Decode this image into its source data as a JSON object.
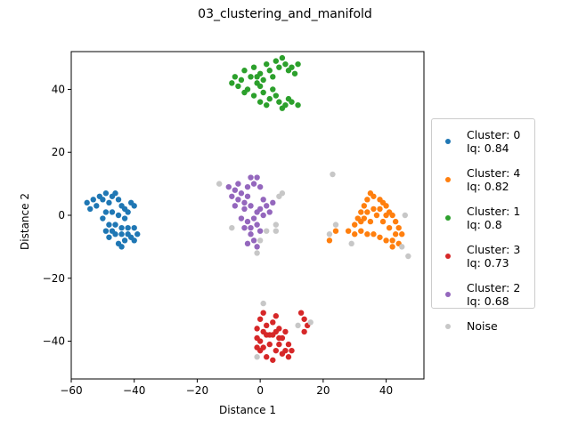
{
  "chart_data": {
    "type": "scatter",
    "title": "03_clustering_and_manifold",
    "xlabel": "Distance 1",
    "ylabel": "Distance 2",
    "xlim": [
      -60,
      52
    ],
    "ylim": [
      -52,
      52
    ],
    "xticks": [
      -60,
      -40,
      -20,
      0,
      20,
      40
    ],
    "yticks": [
      -40,
      -20,
      0,
      20,
      40
    ],
    "grid": false,
    "legend_position": "outside right",
    "series": [
      {
        "name": "Cluster: 0\nIq: 0.84",
        "color": "#1f77b4",
        "points": [
          [
            -55,
            4
          ],
          [
            -54,
            2
          ],
          [
            -53,
            5
          ],
          [
            -52,
            3
          ],
          [
            -51,
            6
          ],
          [
            -50,
            5
          ],
          [
            -49,
            7
          ],
          [
            -48,
            4
          ],
          [
            -47,
            6
          ],
          [
            -46,
            7
          ],
          [
            -45,
            5
          ],
          [
            -44,
            3
          ],
          [
            -43,
            2
          ],
          [
            -42,
            1
          ],
          [
            -41,
            4
          ],
          [
            -40,
            3
          ],
          [
            -49,
            1
          ],
          [
            -47,
            1
          ],
          [
            -45,
            0
          ],
          [
            -43,
            -1
          ],
          [
            -50,
            -1
          ],
          [
            -48,
            -3
          ],
          [
            -46,
            -3
          ],
          [
            -44,
            -4
          ],
          [
            -42,
            -4
          ],
          [
            -40,
            -4
          ],
          [
            -39,
            -6
          ],
          [
            -41,
            -7
          ],
          [
            -43,
            -8
          ],
          [
            -45,
            -9
          ],
          [
            -44,
            -10
          ],
          [
            -46,
            -6
          ],
          [
            -48,
            -7
          ],
          [
            -47,
            -5
          ],
          [
            -49,
            -5
          ],
          [
            -42,
            -6
          ],
          [
            -40,
            -8
          ],
          [
            -44,
            -6
          ]
        ]
      },
      {
        "name": "Cluster: 4\nIq: 0.82",
        "color": "#ff7f0e",
        "points": [
          [
            22,
            -8
          ],
          [
            24,
            -5
          ],
          [
            28,
            -5
          ],
          [
            30,
            -3
          ],
          [
            31,
            -1
          ],
          [
            32,
            1
          ],
          [
            33,
            3
          ],
          [
            34,
            5
          ],
          [
            35,
            7
          ],
          [
            36,
            6
          ],
          [
            38,
            5
          ],
          [
            39,
            4
          ],
          [
            40,
            3
          ],
          [
            41,
            1
          ],
          [
            42,
            0
          ],
          [
            43,
            -2
          ],
          [
            44,
            -4
          ],
          [
            45,
            -6
          ],
          [
            44,
            -9
          ],
          [
            42,
            -10
          ],
          [
            40,
            -8
          ],
          [
            38,
            -7
          ],
          [
            36,
            -6
          ],
          [
            34,
            -6
          ],
          [
            32,
            -5
          ],
          [
            33,
            -1
          ],
          [
            35,
            -2
          ],
          [
            37,
            0
          ],
          [
            39,
            -2
          ],
          [
            41,
            -4
          ],
          [
            43,
            -6
          ],
          [
            36,
            2
          ],
          [
            38,
            2
          ],
          [
            40,
            0
          ],
          [
            34,
            1
          ],
          [
            32,
            -2
          ],
          [
            30,
            -6
          ],
          [
            42,
            -8
          ]
        ]
      },
      {
        "name": "Cluster: 1\nIq: 0.8",
        "color": "#2ca02c",
        "points": [
          [
            -9,
            42
          ],
          [
            -8,
            44
          ],
          [
            -7,
            41
          ],
          [
            -6,
            43
          ],
          [
            -5,
            46
          ],
          [
            -4,
            40
          ],
          [
            -3,
            44
          ],
          [
            -2,
            47
          ],
          [
            -1,
            42
          ],
          [
            0,
            45
          ],
          [
            1,
            43
          ],
          [
            2,
            48
          ],
          [
            3,
            46
          ],
          [
            4,
            44
          ],
          [
            5,
            49
          ],
          [
            6,
            47
          ],
          [
            7,
            50
          ],
          [
            8,
            48
          ],
          [
            9,
            46
          ],
          [
            10,
            47
          ],
          [
            11,
            45
          ],
          [
            12,
            48
          ],
          [
            -2,
            38
          ],
          [
            0,
            36
          ],
          [
            2,
            35
          ],
          [
            3,
            37
          ],
          [
            5,
            38
          ],
          [
            6,
            36
          ],
          [
            7,
            34
          ],
          [
            8,
            35
          ],
          [
            9,
            37
          ],
          [
            10,
            36
          ],
          [
            12,
            35
          ],
          [
            -5,
            39
          ],
          [
            1,
            39
          ],
          [
            4,
            40
          ],
          [
            0,
            41
          ],
          [
            -1,
            44
          ]
        ]
      },
      {
        "name": "Cluster: 3\nIq: 0.73",
        "color": "#d62728",
        "points": [
          [
            -1,
            -36
          ],
          [
            0,
            -33
          ],
          [
            1,
            -31
          ],
          [
            2,
            -35
          ],
          [
            3,
            -38
          ],
          [
            4,
            -34
          ],
          [
            5,
            -32
          ],
          [
            6,
            -36
          ],
          [
            7,
            -39
          ],
          [
            8,
            -37
          ],
          [
            9,
            -41
          ],
          [
            10,
            -43
          ],
          [
            9,
            -45
          ],
          [
            7,
            -44
          ],
          [
            5,
            -43
          ],
          [
            4,
            -46
          ],
          [
            2,
            -45
          ],
          [
            1,
            -42
          ],
          [
            0,
            -40
          ],
          [
            -1,
            -39
          ],
          [
            3,
            -41
          ],
          [
            6,
            -41
          ],
          [
            8,
            -43
          ],
          [
            4,
            -38
          ],
          [
            2,
            -38
          ],
          [
            1,
            -37
          ],
          [
            6,
            -39
          ],
          [
            5,
            -37
          ],
          [
            13,
            -31
          ],
          [
            14,
            -33
          ],
          [
            15,
            -35
          ],
          [
            14,
            -37
          ],
          [
            -1,
            -42
          ],
          [
            0,
            -43
          ]
        ]
      },
      {
        "name": "Cluster: 2\nIq: 0.68",
        "color": "#9467bd",
        "points": [
          [
            -10,
            9
          ],
          [
            -9,
            6
          ],
          [
            -8,
            3
          ],
          [
            -7,
            10
          ],
          [
            -6,
            7
          ],
          [
            -5,
            4
          ],
          [
            -4,
            9
          ],
          [
            -3,
            12
          ],
          [
            -2,
            10
          ],
          [
            -1,
            12
          ],
          [
            0,
            9
          ],
          [
            1,
            5
          ],
          [
            2,
            3
          ],
          [
            3,
            1
          ],
          [
            4,
            4
          ],
          [
            -4,
            6
          ],
          [
            -6,
            -1
          ],
          [
            -5,
            -4
          ],
          [
            -4,
            -2
          ],
          [
            -3,
            -6
          ],
          [
            -2,
            -8
          ],
          [
            -1,
            -10
          ],
          [
            -2,
            -1
          ],
          [
            -1,
            1
          ],
          [
            0,
            2
          ],
          [
            1,
            0
          ],
          [
            -3,
            3
          ],
          [
            -5,
            2
          ],
          [
            -4,
            -9
          ],
          [
            -3,
            -4
          ],
          [
            0,
            -5
          ],
          [
            -1,
            -3
          ],
          [
            -7,
            5
          ],
          [
            -8,
            8
          ]
        ]
      },
      {
        "name": "Noise",
        "color": "#c7c7c7",
        "points": [
          [
            -13,
            10
          ],
          [
            -9,
            -4
          ],
          [
            -1,
            -12
          ],
          [
            0,
            -8
          ],
          [
            2,
            -5
          ],
          [
            5,
            -3
          ],
          [
            6,
            6
          ],
          [
            7,
            7
          ],
          [
            5,
            -5
          ],
          [
            23,
            13
          ],
          [
            22,
            -6
          ],
          [
            24,
            -3
          ],
          [
            29,
            -9
          ],
          [
            46,
            0
          ],
          [
            45,
            -10
          ],
          [
            47,
            -13
          ],
          [
            1,
            -28
          ],
          [
            -1,
            -45
          ],
          [
            16,
            -34
          ],
          [
            12,
            -35
          ]
        ]
      }
    ]
  }
}
